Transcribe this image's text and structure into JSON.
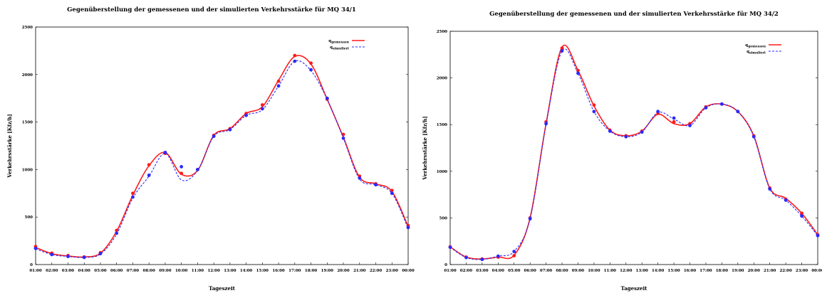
{
  "chart_data": [
    {
      "type": "line",
      "title": "Gegenüberstellung der gemessenen und der simulierten Verkehrsstärke für MQ 34/1",
      "xlabel": "Tageszeit",
      "ylabel": "Verkehrsstärke [Kfz/h]",
      "ylim": [
        0,
        2500
      ],
      "yticks": [
        "0",
        "500",
        "1000",
        "1500",
        "2000",
        "2500"
      ],
      "xticks": [
        "01:00",
        "02:00",
        "03:00",
        "04:00",
        "05:00",
        "06:00",
        "07:00",
        "08:00",
        "09:00",
        "10:00",
        "11:00",
        "12:00",
        "13:00",
        "14:00",
        "15:00",
        "16:00",
        "17:00",
        "18:00",
        "19:00",
        "20:00",
        "21:00",
        "22:00",
        "23:00",
        "00:00"
      ],
      "xlim": [
        1,
        24
      ],
      "legend_position": "top-right",
      "grid": false,
      "x": [
        1,
        2,
        3,
        4,
        5,
        6,
        7,
        8,
        9,
        10,
        11,
        12,
        13,
        14,
        15,
        16,
        17,
        18,
        19,
        20,
        21,
        22,
        23,
        24
      ],
      "series": [
        {
          "name": "q_gemessen",
          "color": "#ff1a1a",
          "style": "solid",
          "values": [
            180,
            115,
            90,
            80,
            120,
            350,
            730,
            1040,
            1180,
            950,
            990,
            1360,
            1430,
            1590,
            1660,
            1940,
            2190,
            2110,
            1740,
            1340,
            920,
            850,
            770,
            400
          ],
          "marker_values": [
            190,
            120,
            95,
            80,
            125,
            360,
            750,
            1050,
            1170,
            960,
            1000,
            1360,
            1430,
            1590,
            1680,
            1930,
            2200,
            2120,
            1740,
            1370,
            930,
            850,
            780,
            410
          ]
        },
        {
          "name": "q_simuliert",
          "color": "#2a2aff",
          "style": "dashed",
          "values": [
            165,
            105,
            85,
            75,
            110,
            320,
            700,
            930,
            1170,
            890,
            990,
            1350,
            1420,
            1570,
            1630,
            1880,
            2140,
            2040,
            1740,
            1330,
            900,
            840,
            750,
            380
          ],
          "marker_values": [
            170,
            105,
            85,
            75,
            115,
            330,
            710,
            940,
            1180,
            1030,
            1000,
            1350,
            1420,
            1570,
            1640,
            1880,
            2140,
            2050,
            1750,
            1330,
            910,
            840,
            750,
            390
          ]
        }
      ]
    },
    {
      "type": "line",
      "title": "Gegenüberstellung der gemessenen und der simulierten Verkehrsstärke für MQ 34/2",
      "xlabel": "Tageszeit",
      "ylabel": "Verkehrsstärke [Kfz/h]",
      "ylim": [
        0,
        2500
      ],
      "yticks": [
        "0",
        "500",
        "1000",
        "1500",
        "2000",
        "2500"
      ],
      "xticks": [
        "01:00",
        "02:00",
        "03:00",
        "04:00",
        "05:00",
        "06:00",
        "07:00",
        "08:00",
        "09:00",
        "10:00",
        "11:00",
        "12:00",
        "13:00",
        "14:00",
        "15:00",
        "16:00",
        "17:00",
        "18:00",
        "19:00",
        "20:00",
        "21:00",
        "22:00",
        "23:00",
        "00:00"
      ],
      "xlim": [
        1,
        24
      ],
      "legend_position": "top-right",
      "grid": false,
      "x": [
        1,
        2,
        3,
        4,
        5,
        6,
        7,
        8,
        9,
        10,
        11,
        12,
        13,
        14,
        15,
        16,
        17,
        18,
        19,
        20,
        21,
        22,
        23,
        24
      ],
      "series": [
        {
          "name": "q_gemessen",
          "color": "#ff1a1a",
          "style": "solid",
          "values": [
            190,
            80,
            60,
            80,
            100,
            500,
            1510,
            2330,
            2080,
            1700,
            1440,
            1380,
            1430,
            1610,
            1510,
            1510,
            1690,
            1720,
            1640,
            1380,
            820,
            710,
            550,
            320
          ],
          "marker_values": [
            190,
            80,
            60,
            80,
            95,
            500,
            1530,
            2320,
            2080,
            1710,
            1440,
            1380,
            1430,
            1620,
            1530,
            1510,
            1690,
            1720,
            1640,
            1380,
            820,
            700,
            550,
            320
          ]
        },
        {
          "name": "q_simuliert",
          "color": "#2a2aff",
          "style": "dashed",
          "values": [
            185,
            75,
            55,
            90,
            140,
            490,
            1500,
            2290,
            2050,
            1640,
            1430,
            1370,
            1420,
            1630,
            1560,
            1490,
            1680,
            1720,
            1640,
            1370,
            810,
            690,
            520,
            310
          ],
          "marker_values": [
            185,
            75,
            55,
            90,
            140,
            490,
            1510,
            2290,
            2050,
            1640,
            1430,
            1370,
            1420,
            1640,
            1570,
            1490,
            1680,
            1720,
            1640,
            1370,
            810,
            690,
            520,
            310
          ]
        }
      ]
    }
  ]
}
